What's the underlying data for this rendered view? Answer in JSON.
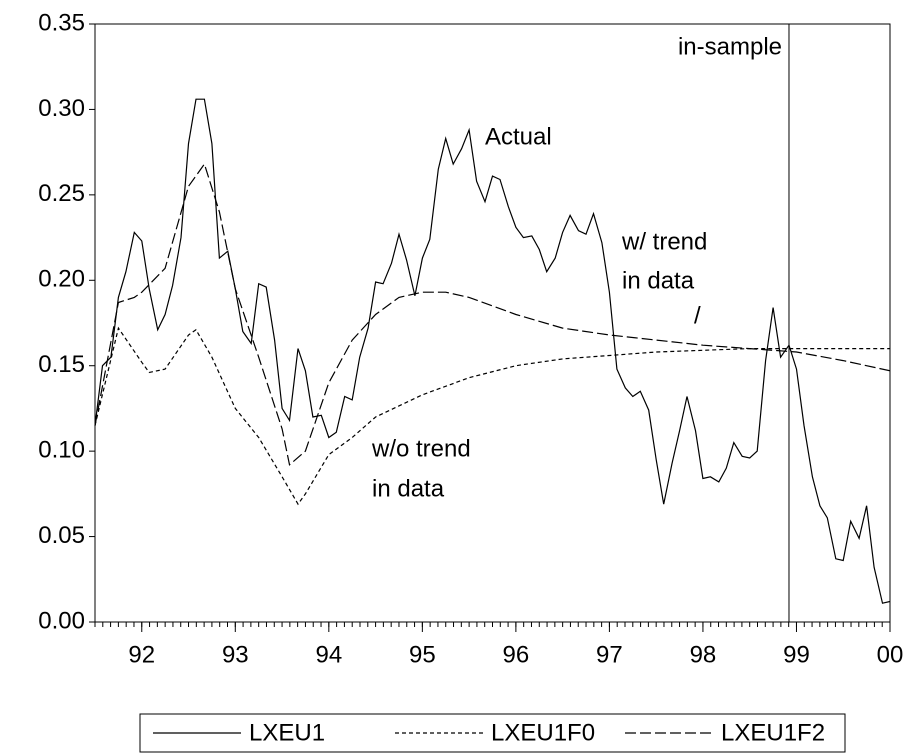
{
  "chart_data": {
    "type": "line",
    "xlim": [
      91.5,
      100
    ],
    "ylim": [
      0,
      0.35
    ],
    "xticks": [
      92,
      93,
      94,
      95,
      96,
      97,
      98,
      99,
      {
        "value": 100,
        "label": "00"
      }
    ],
    "yticks": [
      {
        "value": 0,
        "label": "0.00"
      },
      {
        "value": 0.05,
        "label": "0.05"
      },
      {
        "value": 0.1,
        "label": "0.10"
      },
      {
        "value": 0.15,
        "label": "0.15"
      },
      {
        "value": 0.2,
        "label": "0.20"
      },
      {
        "value": 0.25,
        "label": "0.25"
      },
      {
        "value": 0.3,
        "label": "0.30"
      },
      {
        "value": 0.35,
        "label": "0.35"
      }
    ],
    "vline": 98.92,
    "annotations": [
      "Actual",
      "w/ trend",
      "in data",
      "/",
      "w/o trend",
      "in data",
      "in-sample"
    ],
    "series": [
      {
        "name": "LXEU1",
        "color": "#000000",
        "dash": "none",
        "x": [
          91.5,
          91.58,
          91.67,
          91.75,
          91.83,
          91.92,
          92,
          92.08,
          92.17,
          92.25,
          92.33,
          92.42,
          92.5,
          92.58,
          92.67,
          92.75,
          92.83,
          92.92,
          93,
          93.08,
          93.17,
          93.25,
          93.33,
          93.42,
          93.5,
          93.58,
          93.67,
          93.75,
          93.83,
          93.92,
          94,
          94.08,
          94.17,
          94.25,
          94.33,
          94.42,
          94.5,
          94.58,
          94.67,
          94.75,
          94.83,
          94.92,
          95,
          95.08,
          95.17,
          95.25,
          95.33,
          95.42,
          95.5,
          95.58,
          95.67,
          95.75,
          95.83,
          95.92,
          96,
          96.08,
          96.17,
          96.25,
          96.33,
          96.42,
          96.5,
          96.58,
          96.67,
          96.75,
          96.83,
          96.92,
          97,
          97.08,
          97.17,
          97.25,
          97.33,
          97.42,
          97.5,
          97.58,
          97.67,
          97.75,
          97.83,
          97.92,
          98,
          98.08,
          98.17,
          98.25,
          98.33,
          98.42,
          98.5,
          98.58,
          98.67,
          98.75,
          98.83,
          98.92,
          99,
          99.08,
          99.17,
          99.25,
          99.33,
          99.42,
          99.5,
          99.58,
          99.67,
          99.75,
          99.83,
          99.92,
          100
        ],
        "values": [
          0.115,
          0.15,
          0.155,
          0.19,
          0.205,
          0.228,
          0.223,
          0.195,
          0.171,
          0.18,
          0.197,
          0.225,
          0.28,
          0.306,
          0.306,
          0.28,
          0.213,
          0.217,
          0.195,
          0.17,
          0.163,
          0.198,
          0.196,
          0.165,
          0.125,
          0.118,
          0.16,
          0.147,
          0.12,
          0.121,
          0.108,
          0.111,
          0.132,
          0.13,
          0.155,
          0.172,
          0.199,
          0.198,
          0.21,
          0.227,
          0.212,
          0.191,
          0.213,
          0.224,
          0.265,
          0.283,
          0.268,
          0.277,
          0.288,
          0.258,
          0.246,
          0.261,
          0.259,
          0.243,
          0.231,
          0.225,
          0.226,
          0.218,
          0.205,
          0.213,
          0.228,
          0.238,
          0.229,
          0.227,
          0.239,
          0.222,
          0.193,
          0.148,
          0.137,
          0.132,
          0.135,
          0.124,
          0.095,
          0.069,
          0.093,
          0.112,
          0.132,
          0.112,
          0.084,
          0.085,
          0.082,
          0.09,
          0.105,
          0.097,
          0.096,
          0.1,
          0.153,
          0.184,
          0.155,
          0.162,
          0.148,
          0.115,
          0.085,
          0.068,
          0.061,
          0.037,
          0.036,
          0.059,
          0.049,
          0.068,
          0.032,
          0.011,
          0.012
        ]
      },
      {
        "name": "LXEU1F0",
        "color": "#000000",
        "dash": "4,3",
        "x": [
          91.5,
          91.75,
          92,
          92.08,
          92.25,
          92.5,
          92.58,
          92.75,
          93,
          93.25,
          93.5,
          93.67,
          93.75,
          94,
          94.25,
          94.5,
          95,
          95.5,
          96,
          96.5,
          97,
          97.5,
          98,
          98.5,
          99,
          99.5,
          100
        ],
        "values": [
          0.115,
          0.172,
          0.152,
          0.146,
          0.148,
          0.168,
          0.171,
          0.155,
          0.125,
          0.108,
          0.085,
          0.069,
          0.075,
          0.098,
          0.108,
          0.12,
          0.133,
          0.143,
          0.15,
          0.154,
          0.156,
          0.158,
          0.159,
          0.16,
          0.16,
          0.16,
          0.16
        ]
      },
      {
        "name": "LXEU1F2",
        "color": "#000000",
        "dash": "11,4",
        "x": [
          91.5,
          91.75,
          91.92,
          92,
          92.25,
          92.5,
          92.67,
          92.83,
          93,
          93.25,
          93.5,
          93.58,
          93.75,
          94,
          94.25,
          94.5,
          94.75,
          95,
          95.25,
          95.5,
          96,
          96.5,
          97,
          97.5,
          98,
          98.5,
          99,
          99.5,
          100
        ],
        "values": [
          0.115,
          0.187,
          0.19,
          0.193,
          0.207,
          0.255,
          0.268,
          0.24,
          0.195,
          0.155,
          0.113,
          0.092,
          0.1,
          0.14,
          0.165,
          0.18,
          0.19,
          0.193,
          0.193,
          0.19,
          0.18,
          0.172,
          0.168,
          0.165,
          0.162,
          0.16,
          0.158,
          0.153,
          0.147
        ]
      }
    ]
  }
}
